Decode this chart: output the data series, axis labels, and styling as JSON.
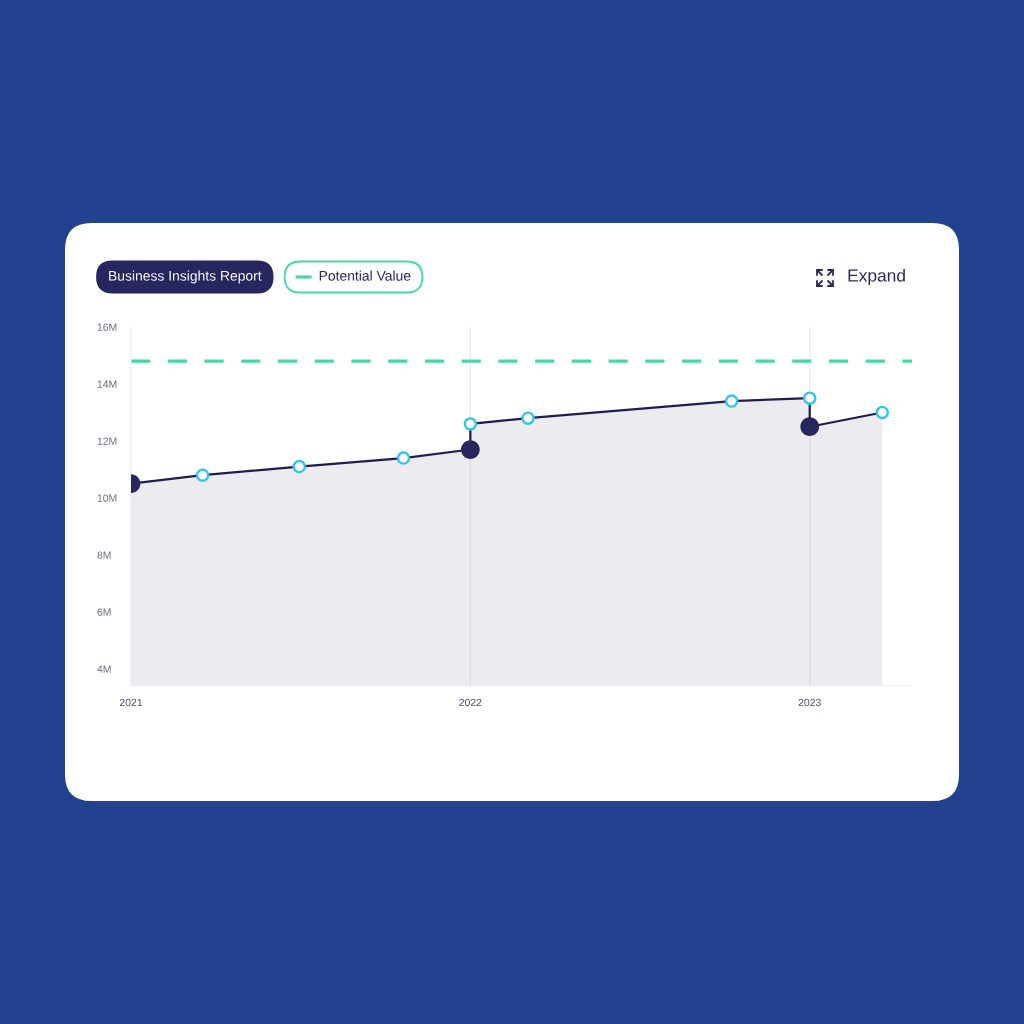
{
  "chart_data": {
    "type": "area",
    "series": [
      {
        "color": "#1f1d50",
        "x": [
          "2021-01-01",
          "2021-03-19",
          "2021-07-01",
          "2021-10-21",
          "2022-01-01",
          "2022-01-01",
          "2022-03-04",
          "2022-10-09",
          "2023-01-01",
          "2023-01-01",
          "2023-03-20"
        ],
        "values": [
          10.5,
          10.8,
          11.1,
          11.4,
          11.7,
          12.6,
          12.8,
          13.4,
          13.5,
          12.5,
          13.0
        ]
      },
      {
        "type": "scatter",
        "color": "#2ec4ef",
        "marker": "circle",
        "x": [
          "2021-03-19",
          "2021-07-01",
          "2021-10-21",
          "2022-01-01",
          "2022-03-04",
          "2022-10-09",
          "2023-01-01",
          "2023-03-20"
        ],
        "values": [
          10.8,
          11.1,
          11.4,
          12.6,
          12.8,
          13.4,
          13.5,
          13.0
        ]
      },
      {
        "type": "scatter",
        "name": "Business Insights Report",
        "color": "#27265e",
        "marker": "circle",
        "x": [
          "2021-01-01",
          "2022-01-01",
          "2023-01-01"
        ],
        "values": [
          10.5,
          11.7,
          12.5
        ]
      }
    ],
    "xlim": [
      "2021-01-01",
      "2023-04-21"
    ],
    "xticks": [
      "2021",
      "2022",
      "2023"
    ],
    "ylim": [
      3.4,
      16
    ],
    "yticks": [
      {
        "value": 4,
        "label": "4M"
      },
      {
        "value": 6,
        "label": "6M"
      },
      {
        "value": 8,
        "label": "8M"
      },
      {
        "value": 10,
        "label": "10M"
      },
      {
        "value": 12,
        "label": "12M"
      },
      {
        "value": 14,
        "label": "14M"
      },
      {
        "value": 16,
        "label": "16M"
      }
    ],
    "ref_lines": [
      {
        "axis": "y",
        "value": 14.8,
        "label": "Potential Value",
        "color": "#45d8a8",
        "line_style": "dashed"
      }
    ],
    "grid": "x",
    "legend": "top left",
    "line_style": "solid",
    "annotations": [
      "Expand"
    ]
  }
}
